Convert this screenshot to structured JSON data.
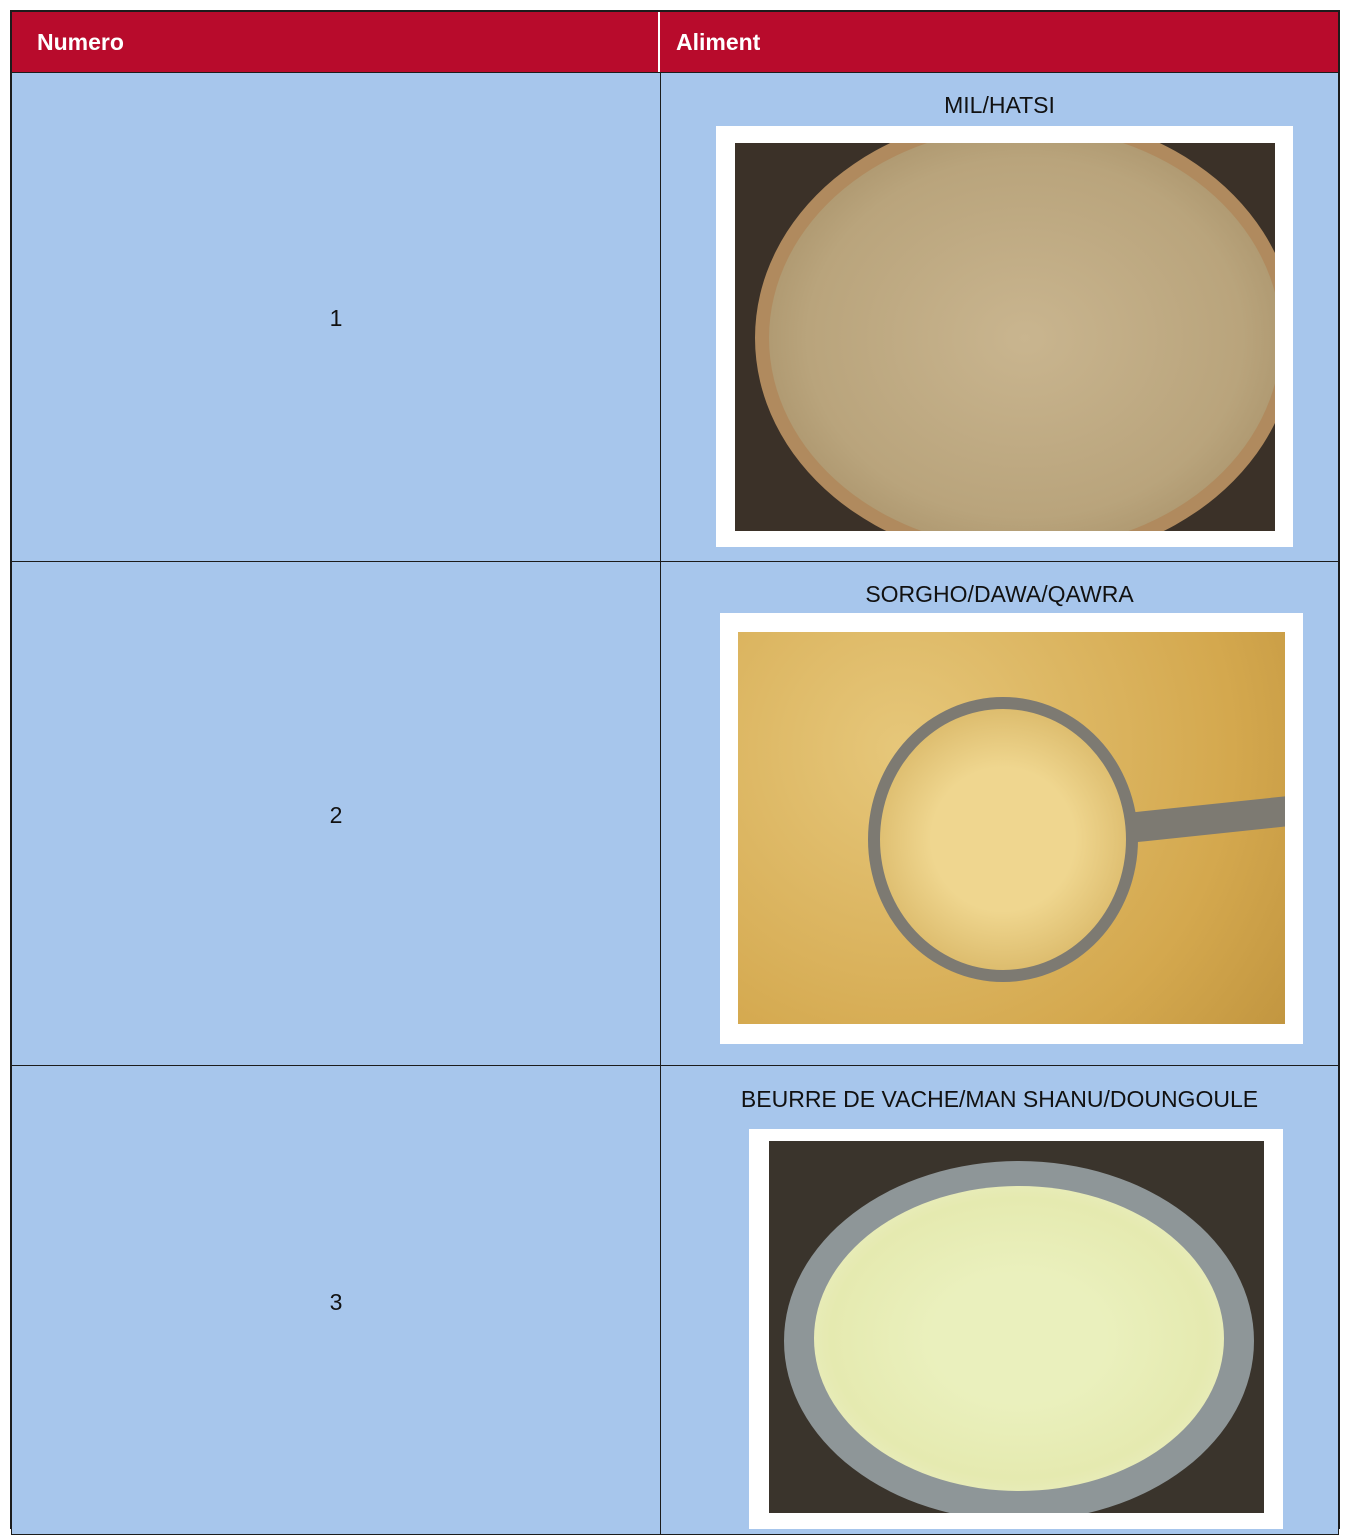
{
  "table": {
    "header": [
      "Numero",
      "Aliment"
    ],
    "rows": [
      [
        "1",
        "MIL/HATSI"
      ],
      [
        "2",
        "SORGHO/DAWA/QAWRA"
      ],
      [
        "3",
        "BEURRE DE VACHE/MAN SHANU/DOUNGOULE"
      ]
    ]
  }
}
